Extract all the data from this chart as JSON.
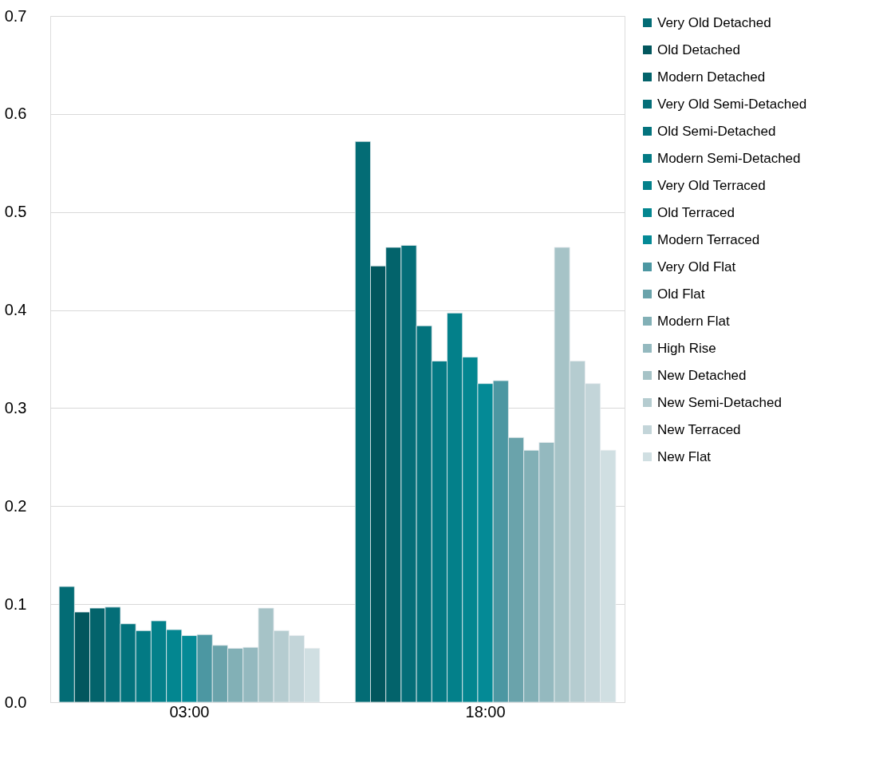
{
  "chart_data": {
    "type": "bar",
    "categories": [
      "03:00",
      "18:00"
    ],
    "series": [
      {
        "name": "Very Old Detached",
        "color": "#036c75",
        "values": [
          0.118,
          0.572
        ]
      },
      {
        "name": "Old Detached",
        "color": "#02575e",
        "values": [
          0.092,
          0.445
        ]
      },
      {
        "name": "Modern Detached",
        "color": "#03636b",
        "values": [
          0.096,
          0.464
        ]
      },
      {
        "name": "Very Old Semi-Detached",
        "color": "#046e78",
        "values": [
          0.097,
          0.466
        ]
      },
      {
        "name": "Old Semi-Detached",
        "color": "#03737d",
        "values": [
          0.08,
          0.384
        ]
      },
      {
        "name": "Modern Semi-Detached",
        "color": "#037a84",
        "values": [
          0.073,
          0.348
        ]
      },
      {
        "name": "Very Old Terraced",
        "color": "#03808a",
        "values": [
          0.083,
          0.397
        ]
      },
      {
        "name": "Old Terraced",
        "color": "#038690",
        "values": [
          0.074,
          0.352
        ]
      },
      {
        "name": "Modern Terraced",
        "color": "#048a96",
        "values": [
          0.068,
          0.325
        ]
      },
      {
        "name": "Very Old Flat",
        "color": "#4c97a2",
        "values": [
          0.069,
          0.328
        ]
      },
      {
        "name": "Old Flat",
        "color": "#6aa3ab",
        "values": [
          0.058,
          0.27
        ]
      },
      {
        "name": "Modern Flat",
        "color": "#82b0b6",
        "values": [
          0.055,
          0.257
        ]
      },
      {
        "name": "High Rise",
        "color": "#94b9bf",
        "values": [
          0.056,
          0.265
        ]
      },
      {
        "name": "New Detached",
        "color": "#a6c3c7",
        "values": [
          0.096,
          0.464
        ]
      },
      {
        "name": "New Semi-Detached",
        "color": "#b5ccd0",
        "values": [
          0.073,
          0.348
        ]
      },
      {
        "name": "New Terraced",
        "color": "#c3d5d9",
        "values": [
          0.068,
          0.325
        ]
      },
      {
        "name": "New Flat",
        "color": "#d0dfe2",
        "values": [
          0.055,
          0.257
        ]
      }
    ],
    "ylim": [
      0,
      0.7
    ],
    "yticks": [
      {
        "value": 0,
        "label": "0.0"
      },
      0.1,
      0.2,
      0.3,
      0.4,
      0.5,
      0.6,
      0.7
    ],
    "grid": "y",
    "legend": "right"
  }
}
